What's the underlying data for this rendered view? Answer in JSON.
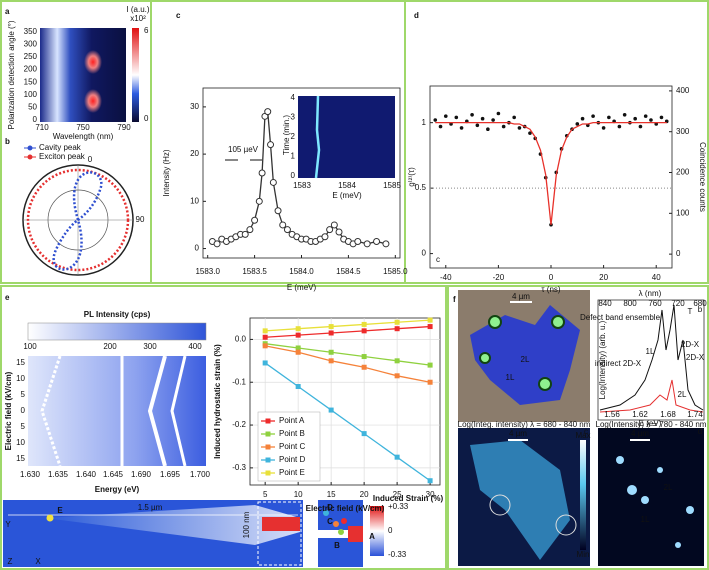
{
  "figure": {
    "panel_labels": [
      "a",
      "b",
      "c",
      "d",
      "e",
      "f"
    ],
    "a": {
      "y_label": "Polarization detection angle (°)",
      "x_label": "Wavelength (nm)",
      "yticks": [
        "0",
        "50",
        "100",
        "150",
        "200",
        "250",
        "300",
        "350"
      ],
      "xticks": [
        "710",
        "750",
        "790"
      ],
      "colorbar_title": "I (a.u.)",
      "colorbar_scale": "x10²",
      "colorbar_ticks": [
        "6",
        "0"
      ]
    },
    "b": {
      "legend": [
        "Cavity peak",
        "Exciton peak"
      ],
      "angles": [
        "0",
        "90"
      ]
    },
    "c_inset": {
      "y_label": "Time (min.)",
      "x_label": "E (meV)",
      "yticks": [
        "0",
        "1",
        "2",
        "3",
        "4"
      ],
      "xticks": [
        "1583",
        "1584",
        "1585"
      ]
    },
    "e_map": {
      "title": "PL Intensity (cps)",
      "colorbar_ticks": [
        "100",
        "200",
        "300",
        "400"
      ],
      "y_label": "Electric field (kV/cm)",
      "yticks": [
        "15",
        "10",
        "5",
        "0",
        "5",
        "10",
        "15"
      ],
      "x_label": "Energy (eV)",
      "xticks": [
        "1.630",
        "1.635",
        "1.640",
        "1.645",
        "1.690",
        "1.695",
        "1.700"
      ]
    },
    "e_device": {
      "length": "1.5 µm",
      "width": "100 nm",
      "points": [
        "E",
        "D",
        "C",
        "B",
        "A"
      ],
      "axes": [
        "Y",
        "Z",
        "X"
      ],
      "colorbar_title": "Induced Strain (%)",
      "colorbar_ticks": [
        "+0.33",
        "0",
        "-0.33"
      ]
    },
    "f": {
      "photo": {
        "scale": "4 µm",
        "labels": [
          "2L",
          "1L"
        ]
      },
      "spectrum": {
        "top_axis": "λ (nm)",
        "top_ticks": [
          "840",
          "800",
          "760",
          "720",
          "680"
        ],
        "y_label": "Log(Intensity) (arb. u.)",
        "x_label": "E (eV)",
        "xticks": [
          "1.56",
          "1.62",
          "1.68",
          "1.74"
        ],
        "corner": "b",
        "annotations": [
          "Defect band ensemble",
          "indirect 2D-X",
          "1L",
          "2D-X",
          "T",
          "2D-X",
          "2L"
        ]
      },
      "map_c": {
        "title": "Log(Integ. intensity) λ = 680 - 840 nm",
        "scale": "4 µm",
        "colorbar": [
          "Max",
          "Min"
        ],
        "corner": "c"
      },
      "map_d": {
        "title": "Log(Intensity) λ = 780 - 840 nm",
        "scale": "4 µm",
        "labels": [
          "2L",
          "1L"
        ],
        "corner": "d"
      }
    }
  },
  "chart_data": [
    {
      "type": "line",
      "y_label": "Intensity (Hz)",
      "x_label": "E (meV)",
      "annotation": "105 µeV",
      "xlim": [
        1582.95,
        1585.05
      ],
      "ylim": [
        -2,
        34
      ],
      "xticks": [
        {
          "value": 1583,
          "label": "1583.0"
        },
        1583.5,
        {
          "value": 1584,
          "label": "1584.0"
        },
        1584.5,
        {
          "value": 1585,
          "label": "1585.0"
        }
      ],
      "yticks": [
        0,
        10,
        20,
        30
      ],
      "x": [
        1583.05,
        1583.1,
        1583.15,
        1583.2,
        1583.25,
        1583.3,
        1583.35,
        1583.4,
        1583.45,
        1583.5,
        1583.55,
        1583.58,
        1583.61,
        1583.64,
        1583.67,
        1583.7,
        1583.75,
        1583.8,
        1583.85,
        1583.9,
        1583.95,
        1584.0,
        1584.05,
        1584.1,
        1584.15,
        1584.2,
        1584.25,
        1584.3,
        1584.35,
        1584.4,
        1584.45,
        1584.5,
        1584.55,
        1584.6,
        1584.7,
        1584.8,
        1584.9
      ],
      "series": [
        {
          "color": "#333333",
          "marker": "circle",
          "line": true,
          "values": [
            1.5,
            1,
            2,
            1.5,
            2,
            2.5,
            3,
            3,
            4,
            6,
            10,
            16,
            28,
            29,
            22,
            14,
            8,
            5,
            4,
            3,
            2.5,
            2,
            2,
            1.5,
            1.5,
            2,
            2.5,
            4,
            5,
            3.5,
            2,
            1.5,
            1,
            1.5,
            1,
            1.5,
            1
          ]
        }
      ],
      "grid": false
    },
    {
      "type": "scatter",
      "y_label": "g⁽²⁾(τ)",
      "y2_label": "Coincidence counts",
      "x_label": "τ (ns)",
      "annotation": "c",
      "xlim": [
        -46,
        46
      ],
      "ylim": [
        -0.11,
        1.28
      ],
      "y2lim": [
        -34,
        412
      ],
      "hline": 0.5,
      "xticks": [
        -40,
        -20,
        0,
        20,
        40
      ],
      "yticks": [
        0,
        0.5,
        1
      ],
      "y2ticks": [
        0,
        100,
        200,
        300,
        400
      ],
      "x": [
        -44,
        -42,
        -40,
        -38,
        -36,
        -34,
        -32,
        -30,
        -28,
        -26,
        -24,
        -22,
        -20,
        -18,
        -16,
        -14,
        -12,
        -10,
        -8,
        -6,
        -4,
        -2,
        0,
        2,
        4,
        6,
        8,
        10,
        12,
        14,
        16,
        18,
        20,
        22,
        24,
        26,
        28,
        30,
        32,
        34,
        36,
        38,
        40,
        42,
        44
      ],
      "series": [
        {
          "color": "#111111",
          "marker": "dot",
          "line": false,
          "values": [
            1.02,
            0.97,
            1.05,
            0.99,
            1.04,
            0.96,
            1.01,
            1.06,
            0.98,
            1.03,
            0.95,
            1.02,
            1.07,
            0.97,
            1.0,
            1.04,
            0.96,
            0.97,
            0.92,
            0.88,
            0.76,
            0.58,
            0.22,
            0.62,
            0.8,
            0.9,
            0.95,
            0.99,
            1.03,
            0.98,
            1.05,
            1.0,
            0.96,
            1.04,
            1.01,
            0.97,
            1.06,
            1.0,
            1.03,
            0.97,
            1.05,
            1.02,
            0.99,
            1.04,
            1.01
          ]
        },
        {
          "color": "#e8312a",
          "marker": "none",
          "line": true,
          "values": [
            1,
            1,
            1,
            1,
            1,
            1,
            1,
            1,
            1,
            1,
            1,
            1,
            1,
            1,
            1,
            0.99,
            0.99,
            0.97,
            0.95,
            0.89,
            0.79,
            0.6,
            0.22,
            0.6,
            0.79,
            0.89,
            0.95,
            0.97,
            0.99,
            0.99,
            1,
            1,
            1,
            1,
            1,
            1,
            1,
            1,
            1,
            1,
            1,
            1,
            1,
            1,
            1
          ]
        }
      ],
      "grid": false
    },
    {
      "type": "line",
      "y_label": "Induced hydrostatic strain (%)",
      "x_label": "Electric field (kV/cm)",
      "legend": "lower left",
      "xlim": [
        2.7,
        31.5
      ],
      "ylim": [
        -0.34,
        0.05
      ],
      "xticks": [
        5,
        10,
        15,
        20,
        25,
        30
      ],
      "yticks": [
        -0.3,
        -0.2,
        -0.1,
        {
          "value": 0,
          "label": "0.0"
        }
      ],
      "x": [
        5,
        10,
        15,
        20,
        25,
        30
      ],
      "series": [
        {
          "name": "Point A",
          "color": "#ee2b2b",
          "marker": "square",
          "line": true,
          "values": [
            0.005,
            0.01,
            0.015,
            0.02,
            0.025,
            0.03
          ]
        },
        {
          "name": "Point B",
          "color": "#8fd13f",
          "marker": "square",
          "line": true,
          "values": [
            -0.01,
            -0.02,
            -0.03,
            -0.04,
            -0.05,
            -0.06
          ]
        },
        {
          "name": "Point C",
          "color": "#f5823a",
          "marker": "square",
          "line": true,
          "values": [
            -0.015,
            -0.03,
            -0.05,
            -0.065,
            -0.085,
            -0.1
          ]
        },
        {
          "name": "Point D",
          "color": "#3fb4dc",
          "marker": "square",
          "line": true,
          "values": [
            -0.055,
            -0.11,
            -0.165,
            -0.22,
            -0.275,
            -0.33
          ]
        },
        {
          "name": "Point E",
          "color": "#e8e03a",
          "marker": "square",
          "line": true,
          "values": [
            0.02,
            0.025,
            0.03,
            0.035,
            0.04,
            0.045
          ]
        }
      ],
      "grid": true
    }
  ]
}
